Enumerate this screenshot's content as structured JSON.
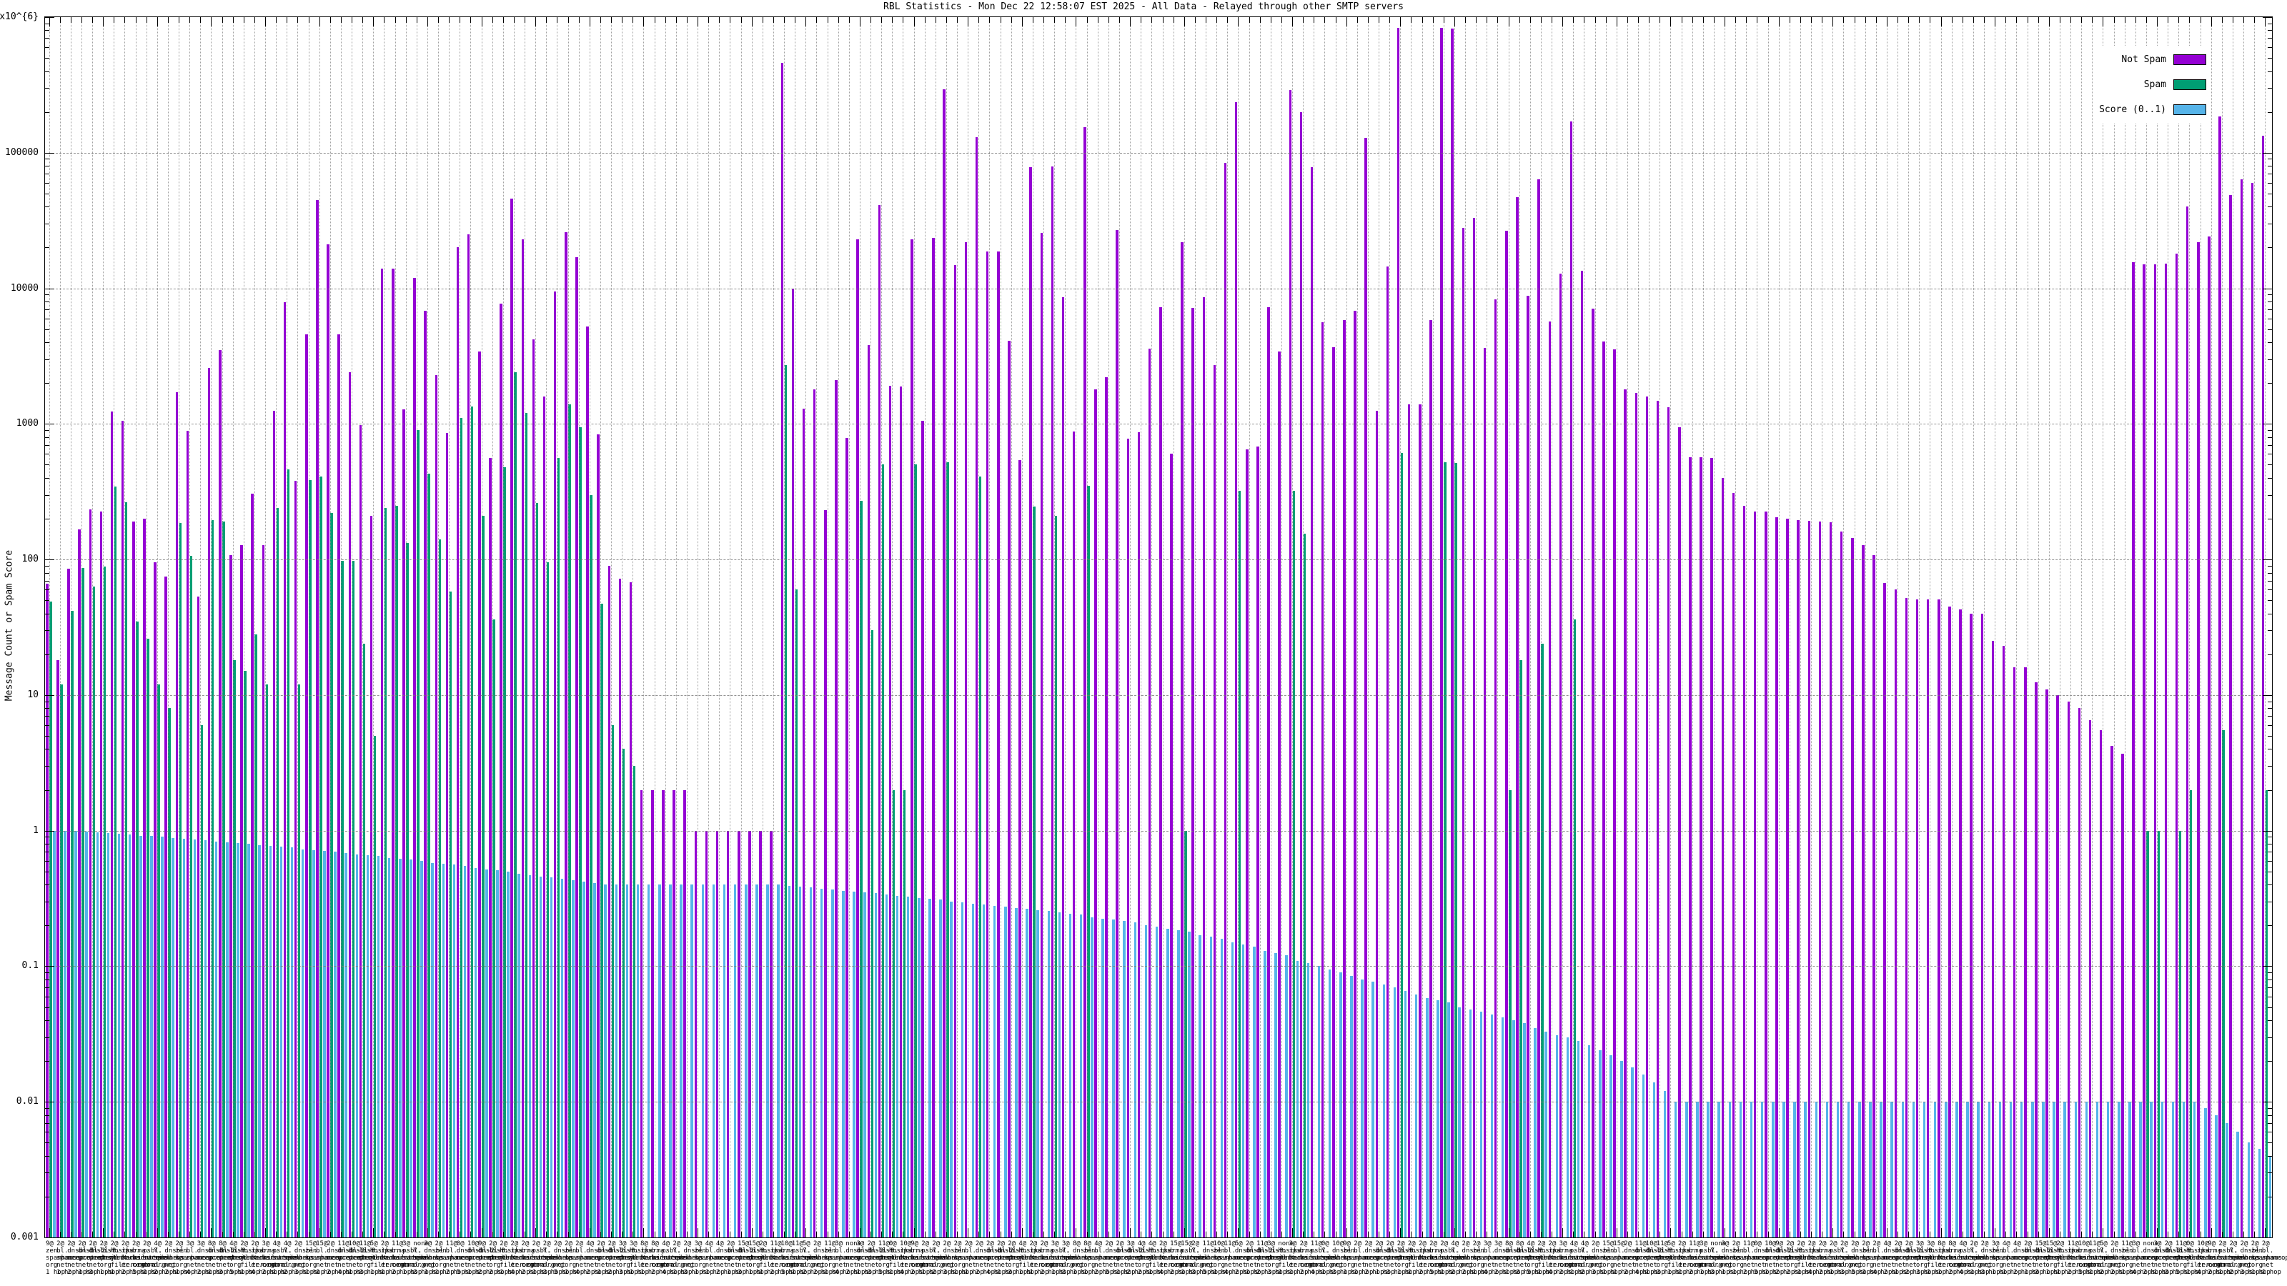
{
  "title": "RBL Statistics - Mon Dec 22 12:58:07 EST 2025 - All Data - Relayed through other SMTP servers",
  "chart_data": {
    "type": "bar",
    "title": "RBL Statistics - Mon Dec 22 12:58:07 EST 2025 - All Data - Relayed through other SMTP servers",
    "xlabel": "",
    "ylabel": "Message Count or Spam Score",
    "y_axis": {
      "scale": "log",
      "min_exp": -3,
      "max_exp": 6,
      "tick_labels": [
        "1x10^{6}",
        "100000",
        "10000",
        "1000",
        "100",
        "10",
        "1",
        "0.1",
        "0.01",
        "0.001"
      ]
    },
    "grid": true,
    "legend_position": "top-right",
    "legend": [
      {
        "label": "Not Spam",
        "color": "#9400d3"
      },
      {
        "label": "Spam",
        "color": "#009e73"
      },
      {
        "label": "Score (0..1)",
        "color": "#56b4e9"
      }
    ],
    "series_names": [
      "Not Spam",
      "Spam",
      "Score (0..1)"
    ],
    "groups_format": [
      "not_spam_count",
      "spam_count",
      "score"
    ],
    "groups": [
      [
        66,
        49,
        1
      ],
      [
        18,
        12,
        1
      ],
      [
        86,
        42,
        1
      ],
      [
        167,
        87,
        0.99
      ],
      [
        235,
        63,
        0.97
      ],
      [
        225,
        89,
        0.96
      ],
      [
        1240,
        345,
        0.95
      ],
      [
        1060,
        265,
        0.94
      ],
      [
        190,
        35,
        0.92
      ],
      [
        200,
        26,
        0.91
      ],
      [
        95,
        12,
        0.9
      ],
      [
        75,
        8,
        0.88
      ],
      [
        1720,
        185,
        0.87
      ],
      [
        890,
        106,
        0.86
      ],
      [
        53,
        6,
        0.85
      ],
      [
        2600,
        195,
        0.83
      ],
      [
        3500,
        190,
        0.82
      ],
      [
        108,
        18,
        0.81
      ],
      [
        128,
        15,
        0.8
      ],
      [
        305,
        28,
        0.78
      ],
      [
        128,
        12,
        0.77
      ],
      [
        1250,
        240,
        0.76
      ],
      [
        7900,
        460,
        0.75
      ],
      [
        380,
        12,
        0.73
      ],
      [
        4600,
        385,
        0.72
      ],
      [
        45000,
        410,
        0.71
      ],
      [
        21000,
        220,
        0.7
      ],
      [
        4600,
        98,
        0.68
      ],
      [
        2400,
        98,
        0.67
      ],
      [
        980,
        24,
        0.66
      ],
      [
        210,
        5,
        0.65
      ],
      [
        14000,
        240,
        0.63
      ],
      [
        14000,
        250,
        0.62
      ],
      [
        1280,
        132,
        0.61
      ],
      [
        12000,
        900,
        0.6
      ],
      [
        6800,
        430,
        0.58
      ],
      [
        2300,
        140,
        0.57
      ],
      [
        860,
        58,
        0.56
      ],
      [
        20000,
        1100,
        0.55
      ],
      [
        25000,
        1350,
        0.53
      ],
      [
        3400,
        210,
        0.52
      ],
      [
        560,
        36,
        0.51
      ],
      [
        7700,
        480,
        0.5
      ],
      [
        46000,
        2400,
        0.48
      ],
      [
        23000,
        1200,
        0.47
      ],
      [
        4200,
        260,
        0.46
      ],
      [
        1600,
        95,
        0.45
      ],
      [
        9500,
        560,
        0.44
      ],
      [
        26000,
        1400,
        0.43
      ],
      [
        17000,
        950,
        0.42
      ],
      [
        5200,
        300,
        0.41
      ],
      [
        840,
        47,
        0.4
      ],
      [
        90,
        6,
        0.4
      ],
      [
        72,
        4,
        0.4
      ],
      [
        68,
        3,
        0.4
      ],
      [
        2,
        0,
        0.4
      ],
      [
        2,
        0,
        0.4
      ],
      [
        2,
        0,
        0.4
      ],
      [
        2,
        0,
        0.4
      ],
      [
        2,
        0,
        0.4
      ],
      [
        1,
        0,
        0.4
      ],
      [
        1,
        0,
        0.4
      ],
      [
        1,
        0,
        0.4
      ],
      [
        1,
        0,
        0.4
      ],
      [
        1,
        0,
        0.4
      ],
      [
        1,
        0,
        0.4
      ],
      [
        1,
        0,
        0.4
      ],
      [
        1,
        0,
        0.4
      ],
      [
        460000,
        2700,
        0.39
      ],
      [
        10000,
        60,
        0.385
      ],
      [
        1300,
        0,
        0.38
      ],
      [
        1800,
        0,
        0.375
      ],
      [
        230,
        0,
        0.37
      ],
      [
        2100,
        0,
        0.36
      ],
      [
        790,
        0,
        0.355
      ],
      [
        23000,
        270,
        0.35
      ],
      [
        3800,
        30,
        0.345
      ],
      [
        41000,
        500,
        0.34
      ],
      [
        1900,
        2,
        0.33
      ],
      [
        1880,
        2,
        0.325
      ],
      [
        23000,
        500,
        0.32
      ],
      [
        1060,
        0,
        0.315
      ],
      [
        23500,
        0,
        0.31
      ],
      [
        295000,
        520,
        0.3
      ],
      [
        14800,
        0,
        0.295
      ],
      [
        22000,
        0,
        0.29
      ],
      [
        130000,
        410,
        0.285
      ],
      [
        18800,
        0,
        0.28
      ],
      [
        18800,
        0,
        0.275
      ],
      [
        4100,
        0,
        0.27
      ],
      [
        540,
        0,
        0.265
      ],
      [
        78000,
        245,
        0.26
      ],
      [
        25500,
        0,
        0.255
      ],
      [
        79000,
        210,
        0.25
      ],
      [
        8600,
        0,
        0.245
      ],
      [
        880,
        0,
        0.24
      ],
      [
        155000,
        350,
        0.23
      ],
      [
        1800,
        0,
        0.225
      ],
      [
        2200,
        0,
        0.22
      ],
      [
        27000,
        0,
        0.215
      ],
      [
        780,
        0,
        0.21
      ],
      [
        870,
        0,
        0.2
      ],
      [
        3600,
        0,
        0.195
      ],
      [
        7300,
        0,
        0.19
      ],
      [
        600,
        0,
        0.185
      ],
      [
        22000,
        1,
        0.18
      ],
      [
        7200,
        0,
        0.17
      ],
      [
        8600,
        0,
        0.165
      ],
      [
        2700,
        0,
        0.16
      ],
      [
        84000,
        0,
        0.15
      ],
      [
        235000,
        320,
        0.145
      ],
      [
        650,
        0,
        0.14
      ],
      [
        680,
        0,
        0.13
      ],
      [
        7300,
        0,
        0.125
      ],
      [
        3400,
        0,
        0.12
      ],
      [
        290000,
        320,
        0.11
      ],
      [
        200000,
        155,
        0.105
      ],
      [
        78000,
        0,
        0.1
      ],
      [
        5600,
        0,
        0.095
      ],
      [
        3700,
        0,
        0.09
      ],
      [
        5800,
        0,
        0.085
      ],
      [
        6800,
        0,
        0.08
      ],
      [
        128000,
        0,
        0.077
      ],
      [
        1250,
        0,
        0.073
      ],
      [
        14500,
        0,
        0.07
      ],
      [
        830000,
        610,
        0.066
      ],
      [
        1400,
        0,
        0.062
      ],
      [
        1400,
        0,
        0.058
      ],
      [
        5800,
        0,
        0.056
      ],
      [
        830000,
        520,
        0.054
      ],
      [
        820000,
        515,
        0.05
      ],
      [
        28000,
        0,
        0.048
      ],
      [
        33000,
        0,
        0.046
      ],
      [
        3650,
        0,
        0.044
      ],
      [
        8300,
        0,
        0.042
      ],
      [
        26500,
        2,
        0.04
      ],
      [
        47000,
        18,
        0.038
      ],
      [
        8800,
        0,
        0.035
      ],
      [
        64000,
        24,
        0.033
      ],
      [
        5700,
        0,
        0.031
      ],
      [
        12800,
        0,
        0.03
      ],
      [
        170000,
        36,
        0.028
      ],
      [
        13400,
        0,
        0.026
      ],
      [
        7100,
        0,
        0.024
      ],
      [
        4050,
        0,
        0.022
      ],
      [
        3550,
        0,
        0.02
      ],
      [
        1800,
        0,
        0.018
      ],
      [
        1700,
        0,
        0.016
      ],
      [
        1600,
        0,
        0.014
      ],
      [
        1480,
        0,
        0.012
      ],
      [
        1320,
        0,
        0.01
      ],
      [
        950,
        0,
        0.01
      ],
      [
        570,
        0,
        0.01
      ],
      [
        565,
        0,
        0.01
      ],
      [
        560,
        0,
        0.01
      ],
      [
        400,
        0,
        0.01
      ],
      [
        310,
        0,
        0.01
      ],
      [
        250,
        0,
        0.01
      ],
      [
        225,
        0,
        0.01
      ],
      [
        225,
        0,
        0.01
      ],
      [
        205,
        0,
        0.01
      ],
      [
        200,
        0,
        0.01
      ],
      [
        195,
        0,
        0.01
      ],
      [
        192,
        0,
        0.01
      ],
      [
        190,
        0,
        0.01
      ],
      [
        188,
        0,
        0.01
      ],
      [
        160,
        0,
        0.01
      ],
      [
        145,
        0,
        0.01
      ],
      [
        127,
        0,
        0.01
      ],
      [
        108,
        0,
        0.01
      ],
      [
        67,
        0,
        0.01
      ],
      [
        60,
        0,
        0.01
      ],
      [
        52,
        0,
        0.01
      ],
      [
        51,
        0,
        0.01
      ],
      [
        51,
        0,
        0.01
      ],
      [
        51,
        0,
        0.01
      ],
      [
        45,
        0,
        0.01
      ],
      [
        43,
        0,
        0.01
      ],
      [
        40,
        0,
        0.01
      ],
      [
        40,
        0,
        0.01
      ],
      [
        25,
        0,
        0.01
      ],
      [
        23,
        0,
        0.01
      ],
      [
        16,
        0,
        0.01
      ],
      [
        16,
        0,
        0.01
      ],
      [
        12.5,
        0,
        0.01
      ],
      [
        11,
        0,
        0.01
      ],
      [
        10,
        0,
        0.01
      ],
      [
        9,
        0,
        0.01
      ],
      [
        8,
        0,
        0.01
      ],
      [
        6.5,
        0,
        0.01
      ],
      [
        5.5,
        0,
        0.01
      ],
      [
        4.2,
        0,
        0.01
      ],
      [
        3.7,
        0,
        0.01
      ],
      [
        15500,
        0,
        0.01
      ],
      [
        15000,
        1,
        0.01
      ],
      [
        15000,
        1,
        0.01
      ],
      [
        15200,
        0,
        0.01
      ],
      [
        18000,
        1,
        0.01
      ],
      [
        40000,
        2,
        0.01
      ],
      [
        22000,
        0,
        0.009
      ],
      [
        24000,
        0,
        0.008
      ],
      [
        185000,
        5.5,
        0.007
      ],
      [
        49000,
        0,
        0.006
      ],
      [
        64000,
        0,
        0.005
      ],
      [
        60000,
        0,
        0.0045
      ],
      [
        133000,
        2,
        0.004
      ]
    ],
    "x_label_pattern": {
      "counts": [
        "9",
        "2",
        "2",
        "2",
        "2",
        "2",
        "2",
        "2",
        "2",
        "2",
        "4",
        "2",
        "2",
        "3",
        "3",
        "8",
        "8",
        "4",
        "2",
        "2",
        "3",
        "4",
        "4",
        "2",
        "15",
        "15",
        "2",
        "11",
        "10",
        "11",
        "5",
        "2",
        "11",
        "3",
        "none",
        "3",
        "2",
        "11",
        "0",
        "10"
      ],
      "domains": [
        "zen.|spamhaus.|org",
        "bl.|spamcop.|net",
        "dnsbl-1.|uceprotect.|net",
        "dnsbl-2.|uceprotect.|net",
        "dnsbl-3.|uceprotect.|net",
        "list.|dnswl.|org",
        "hostkarma.|junkemail|filter.com",
        "ips.|backscatter|er.org",
        "b.|barracuda|central.org",
        "psbl.|surriel.|com",
        "Y.|spamhaus.|org",
        "dnsbl.|sorbs.|net"
      ],
      "hops": [
        1,
        1,
        2,
        1,
        3,
        1,
        1,
        2,
        5,
        1,
        2,
        2,
        1,
        4,
        2,
        1,
        3,
        5,
        1,
        4,
        2,
        1,
        2,
        3,
        1,
        1,
        2,
        4,
        1,
        3
      ]
    }
  },
  "ui": {
    "ylabel": "Message Count or Spam Score"
  }
}
